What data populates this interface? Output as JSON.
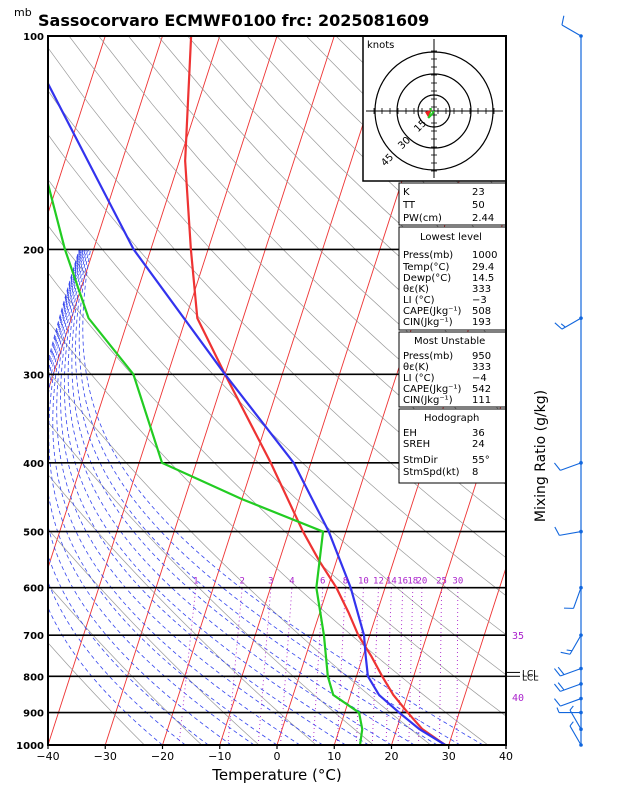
{
  "unit_label": "mb",
  "title": "Sassocorvaro ECMWF0100 frc: 2025081609",
  "xlabel": "Temperature (°C)",
  "ylabel": "Mixing Ratio (g/kg)",
  "x_ticks": [
    "−40",
    "−30",
    "−20",
    "−10",
    "0",
    "10",
    "20",
    "30",
    "40"
  ],
  "p_ticks": [
    "100",
    "200",
    "300",
    "400",
    "500",
    "600",
    "700",
    "800",
    "900",
    "1000"
  ],
  "mixing_ratio_labels": [
    "1",
    "2",
    "3",
    "4",
    "6",
    "8",
    "10",
    "12",
    "14",
    "16",
    "18",
    "20",
    "25",
    "30"
  ],
  "theta_e_labels": [
    "35",
    "40"
  ],
  "lcl_labels": [
    "LCL",
    "LCL"
  ],
  "hodograph": {
    "units": "knots",
    "rings": [
      "15",
      "30",
      "45"
    ]
  },
  "indices": {
    "k": "23",
    "tt": "50",
    "pw": "2.44"
  },
  "lowest": {
    "header": "Lowest level",
    "press": "1000",
    "temp": "29.4",
    "dewp": "14.5",
    "theta_e": "333",
    "li": "−3",
    "cape": "508",
    "cin": "193"
  },
  "unstable": {
    "header": "Most Unstable",
    "press": "950",
    "theta_e": "333",
    "li": "−4",
    "cape": "542",
    "cin": "111"
  },
  "hodo_box": {
    "header": "Hodograph",
    "eh": "36",
    "sreh": "24",
    "stmdir": "55°",
    "stmspd": "8"
  },
  "labels": {
    "k": "K",
    "tt": "TT",
    "pw": "PW(cm)",
    "press": "Press(mb)",
    "temp": "Temp(°C)",
    "dewp": "Dewp(°C)",
    "theta_e": "θε(K)",
    "li": "LI (°C)",
    "cape": "CAPE(Jkg⁻¹)",
    "cin": "CIN(Jkg⁻¹)",
    "eh": "EH",
    "sreh": "SREH",
    "stmdir": "StmDir",
    "stmspd": "StmSpd(kt)"
  },
  "colors": {
    "temperature": "#ee3333",
    "dewpoint": "#22cc22",
    "parcel": "#3333ee",
    "isotherm": "#ee3333",
    "dry_adiabat": "#999999",
    "moist_adiabat": "#3344ee",
    "mixing_ratio": "#aa22cc",
    "wind": "#1166dd"
  },
  "chart_data": {
    "type": "line",
    "title": "Sassocorvaro ECMWF0100 frc: 2025081609",
    "xlabel": "Temperature (°C)",
    "ylabel": "Mixing Ratio (g/kg)",
    "xlim": [
      -40,
      40
    ],
    "plim": [
      1000,
      100
    ],
    "skew_deg_per_decade": 40,
    "series": [
      {
        "points": [
          [
            1000,
            29.4
          ],
          [
            950,
            24.5
          ],
          [
            900,
            21
          ],
          [
            850,
            17.5
          ],
          [
            800,
            14.5
          ],
          [
            750,
            11.5
          ],
          [
            700,
            8
          ],
          [
            650,
            5
          ],
          [
            600,
            1.5
          ],
          [
            550,
            -3
          ],
          [
            500,
            -7.5
          ],
          [
            400,
            -17
          ],
          [
            300,
            -30
          ],
          [
            250,
            -38
          ],
          [
            200,
            -43
          ],
          [
            150,
            -49
          ],
          [
            100,
            -55
          ]
        ]
      },
      {
        "points": [
          [
            1000,
            14.5
          ],
          [
            950,
            14
          ],
          [
            900,
            12.5
          ],
          [
            850,
            7
          ],
          [
            800,
            5
          ],
          [
            700,
            2
          ],
          [
            600,
            -2
          ],
          [
            500,
            -4
          ],
          [
            450,
            -20
          ],
          [
            400,
            -36
          ],
          [
            300,
            -46
          ],
          [
            250,
            -57
          ],
          [
            200,
            -65
          ],
          [
            150,
            -74
          ],
          [
            100,
            -82
          ]
        ]
      },
      {
        "points": [
          [
            1000,
            29.4
          ],
          [
            950,
            24
          ],
          [
            900,
            19.5
          ],
          [
            850,
            15
          ],
          [
            800,
            12
          ],
          [
            750,
            10.5
          ],
          [
            700,
            9
          ],
          [
            600,
            4
          ],
          [
            500,
            -3
          ],
          [
            400,
            -13
          ],
          [
            300,
            -30
          ],
          [
            200,
            -53
          ],
          [
            150,
            -66
          ],
          [
            110,
            -80
          ]
        ]
      }
    ],
    "wind_profile": [
      {
        "p": 100,
        "spd": 10,
        "dir": 300
      },
      {
        "p": 250,
        "spd": 15,
        "dir": 240
      },
      {
        "p": 400,
        "spd": 10,
        "dir": 250
      },
      {
        "p": 500,
        "spd": 10,
        "dir": 260
      },
      {
        "p": 600,
        "spd": 10,
        "dir": 200
      },
      {
        "p": 700,
        "spd": 15,
        "dir": 210
      },
      {
        "p": 780,
        "spd": 20,
        "dir": 250
      },
      {
        "p": 820,
        "spd": 20,
        "dir": 250
      },
      {
        "p": 860,
        "spd": 10,
        "dir": 250
      },
      {
        "p": 900,
        "spd": 5,
        "dir": 270
      },
      {
        "p": 950,
        "spd": 5,
        "dir": 330
      },
      {
        "p": 1000,
        "spd": 5,
        "dir": 330
      }
    ],
    "hodograph_points": [
      [
        0,
        0
      ],
      [
        -2,
        3
      ],
      [
        -4,
        5
      ],
      [
        -3,
        2
      ],
      [
        -2,
        -2
      ]
    ],
    "lcl_pressure_mb": [
      790,
      800
    ]
  }
}
